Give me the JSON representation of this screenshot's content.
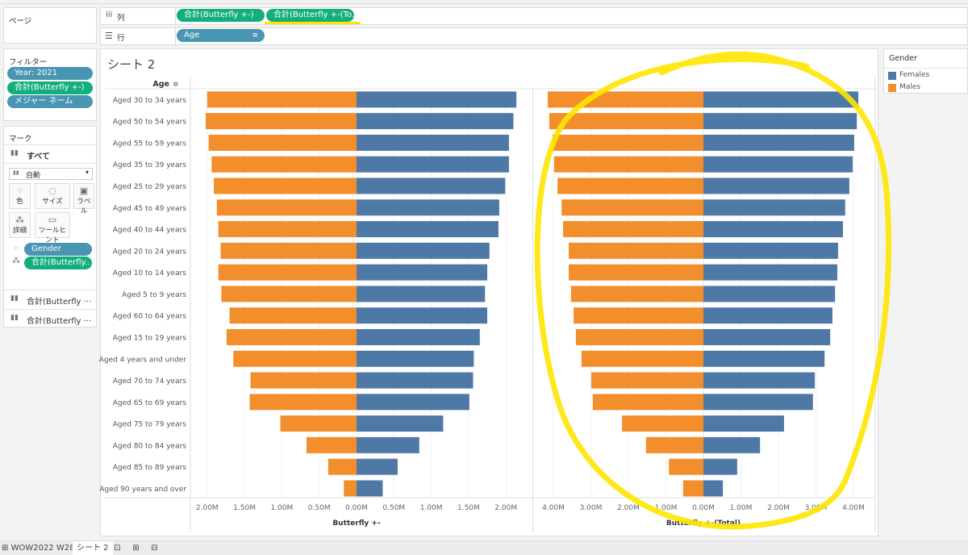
{
  "shelves": {
    "pages_label": "ページ",
    "columns_label": "列",
    "columns_pills": [
      "合計(Butterfly +-)",
      "合計(Butterfly +-(To.."
    ],
    "rows_label": "行",
    "rows_pill": "Age"
  },
  "filters": {
    "title": "フィルター",
    "items": [
      "Year: 2021",
      "合計(Butterfly +-)",
      "メジャー ネーム"
    ]
  },
  "marks": {
    "title": "マーク",
    "all_label": "すべて",
    "mark_type": "自動",
    "buttons": {
      "color": "色",
      "size": "サイズ",
      "label": "ラベル",
      "detail": "詳細",
      "tooltip": "ツールヒント"
    },
    "fields": [
      "Gender",
      "合計(Butterfly.."
    ],
    "sub_cards": [
      "合計(Butterfly ···",
      "合計(Butterfly ···"
    ]
  },
  "sheet_title": "シート 2",
  "legend": {
    "title": "Gender",
    "items": [
      {
        "label": "Females",
        "color": "#4e79a7"
      },
      {
        "label": "Males",
        "color": "#f28e2b"
      }
    ]
  },
  "tabs": {
    "datasource": "WOW2022 W28",
    "active": "シート 2"
  },
  "colors": {
    "females": "#4e79a7",
    "males": "#f28e2b",
    "highlight": "#ffe600"
  },
  "chart_data": [
    {
      "type": "bar",
      "title": "",
      "row_header": "Age",
      "xlabel": "Butterfly +-",
      "xlim": [
        -2.2,
        2.2
      ],
      "x_ticks": [
        "2.00M",
        "1.50M",
        "1.00M",
        "0.50M",
        "0.00M",
        "0.50M",
        "1.00M",
        "1.50M",
        "2.00M"
      ],
      "categories": [
        "Aged 30 to 34 years",
        "Aged 50 to 54 years",
        "Aged 55 to 59 years",
        "Aged 35 to 39 years",
        "Aged 25 to 29 years",
        "Aged 45 to 49 years",
        "Aged 40 to 44 years",
        "Aged 20 to 24 years",
        "Aged 10 to 14 years",
        "Aged 5 to 9 years",
        "Aged 60 to 64 years",
        "Aged 15 to 19 years",
        "Aged 4 years and under",
        "Aged 70 to 74 years",
        "Aged 65 to 69 years",
        "Aged 75 to 79 years",
        "Aged 80 to 84 years",
        "Aged 85 to 89 years",
        "Aged 90 years and over"
      ],
      "series": [
        {
          "name": "Females",
          "values": [
            2.14,
            2.1,
            2.04,
            2.04,
            1.99,
            1.91,
            1.9,
            1.78,
            1.75,
            1.72,
            1.75,
            1.65,
            1.57,
            1.56,
            1.51,
            1.16,
            0.84,
            0.55,
            0.35
          ]
        },
        {
          "name": "Males",
          "values": [
            -2.0,
            -2.02,
            -1.98,
            -1.94,
            -1.91,
            -1.87,
            -1.85,
            -1.82,
            -1.85,
            -1.81,
            -1.7,
            -1.74,
            -1.65,
            -1.42,
            -1.43,
            -1.02,
            -0.67,
            -0.38,
            -0.17
          ]
        }
      ],
      "unit": "M"
    },
    {
      "type": "bar",
      "title": "",
      "xlabel": "Butterfly +-(Total)",
      "xlim": [
        -4.55,
        4.55
      ],
      "x_ticks": [
        "4.00M",
        "3.00M",
        "2.00M",
        "1.00M",
        "0.00M",
        "1.00M",
        "2.00M",
        "3.00M",
        "4.00M"
      ],
      "series": [
        {
          "name": "Females",
          "values": [
            4.13,
            4.09,
            4.02,
            3.98,
            3.89,
            3.78,
            3.72,
            3.59,
            3.57,
            3.51,
            3.44,
            3.38,
            3.23,
            2.97,
            2.92,
            2.15,
            1.51,
            0.9,
            0.52
          ]
        },
        {
          "name": "Males",
          "values": [
            -4.15,
            -4.11,
            -4.02,
            -3.98,
            -3.89,
            -3.78,
            -3.74,
            -3.59,
            -3.59,
            -3.53,
            -3.46,
            -3.4,
            -3.25,
            -2.99,
            -2.95,
            -2.17,
            -1.53,
            -0.92,
            -0.54
          ]
        }
      ],
      "unit": "M"
    }
  ]
}
